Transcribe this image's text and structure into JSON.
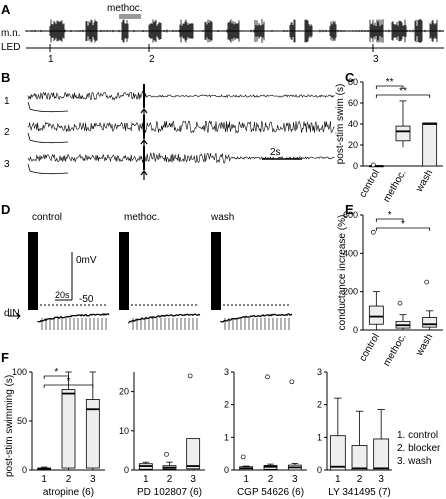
{
  "panels": {
    "A": {
      "letter": "A",
      "mn_label": "m.n.",
      "led_label": "LED",
      "drug_label": "methoc.",
      "markers": [
        "1",
        "2",
        "3"
      ]
    },
    "B": {
      "letter": "B",
      "trace_labels": [
        "1",
        "2",
        "3"
      ],
      "scalebar_label": "2s"
    },
    "C": {
      "letter": "C",
      "ylabel": "post-stim swim (s)",
      "yticks": [
        "0",
        "20",
        "40",
        "60",
        "80"
      ],
      "categories": [
        "control",
        "methoc.",
        "wash"
      ],
      "sig": [
        "**",
        "**"
      ]
    },
    "D": {
      "letter": "D",
      "cond_labels": [
        "control",
        "methoc.",
        "wash"
      ],
      "mv_label": "0mV",
      "scale_ms": "20s",
      "scale_mv": "-50",
      "din_label": "dIN"
    },
    "E": {
      "letter": "E",
      "ylabel": "conductance increase (%)",
      "yticks": [
        "0",
        "200",
        "400",
        "600"
      ],
      "categories": [
        "control",
        "methoc.",
        "wash"
      ],
      "sig": [
        "*",
        "*"
      ]
    },
    "F": {
      "letter": "F",
      "ylabel": "post-stim swimming (s)",
      "legend": [
        "1. control",
        "2. blocker",
        "3. wash"
      ],
      "subplots": [
        {
          "xlabel": "atropine (6)",
          "yticks": [
            "0",
            "50",
            "100"
          ],
          "xticks": [
            "1",
            "2",
            "3"
          ],
          "sig": [
            "*",
            "*"
          ]
        },
        {
          "xlabel": "PD 102807 (6)",
          "yticks": [
            "0",
            "10",
            "20"
          ],
          "xticks": [
            "1",
            "2",
            "3"
          ]
        },
        {
          "xlabel": "CGP 54626 (6)",
          "yticks": [
            "0",
            "1",
            "2",
            "3"
          ],
          "xticks": [
            "1",
            "2",
            "3"
          ]
        },
        {
          "xlabel": "LY 341495 (7)",
          "yticks": [
            "0",
            "1",
            "2",
            "3"
          ],
          "xticks": [
            "1",
            "2",
            "3"
          ]
        }
      ]
    }
  },
  "chart_data": [
    {
      "type": "box",
      "panel": "C",
      "categories": [
        "control",
        "methoc.",
        "wash"
      ],
      "ylim": [
        0,
        80
      ],
      "boxes": [
        {
          "min": 0,
          "q1": 0,
          "median": 0,
          "q3": 0,
          "max": 0
        },
        {
          "min": 18,
          "q1": 24,
          "median": 33,
          "q3": 38,
          "max": 62
        },
        {
          "min": 0,
          "q1": 0,
          "median": 40,
          "q3": 41,
          "max": 41
        }
      ],
      "outliers": [
        [
          0,
          1
        ]
      ]
    },
    {
      "type": "box",
      "panel": "E",
      "categories": [
        "control",
        "methoc.",
        "wash"
      ],
      "ylim": [
        0,
        600
      ],
      "boxes": [
        {
          "min": 0,
          "q1": 30,
          "median": 70,
          "q3": 125,
          "max": 200
        },
        {
          "min": 0,
          "q1": 10,
          "median": 25,
          "q3": 45,
          "max": 80
        },
        {
          "min": 0,
          "q1": 15,
          "median": 30,
          "q3": 65,
          "max": 100
        }
      ],
      "outliers": [
        [
          0,
          510
        ],
        [
          1,
          140
        ],
        [
          2,
          250
        ]
      ]
    },
    {
      "type": "box",
      "panel": "F-atropine",
      "categories": [
        "1",
        "2",
        "3"
      ],
      "ylim": [
        0,
        100
      ],
      "boxes": [
        {
          "min": 0,
          "q1": 0,
          "median": 1,
          "q3": 2,
          "max": 3
        },
        {
          "min": 0,
          "q1": 2,
          "median": 78,
          "q3": 82,
          "max": 100
        },
        {
          "min": 0,
          "q1": 2,
          "median": 62,
          "q3": 72,
          "max": 100
        }
      ],
      "outliers": []
    },
    {
      "type": "box",
      "panel": "F-PD102807",
      "categories": [
        "1",
        "2",
        "3"
      ],
      "ylim": [
        0,
        25
      ],
      "boxes": [
        {
          "min": 0,
          "q1": 0.2,
          "median": 1,
          "q3": 1.6,
          "max": 2
        },
        {
          "min": 0,
          "q1": 0.2,
          "median": 0.6,
          "q3": 1.1,
          "max": 2
        },
        {
          "min": 0,
          "q1": 0.3,
          "median": 1,
          "q3": 8,
          "max": 8
        }
      ],
      "outliers": [
        [
          1,
          4
        ],
        [
          2,
          24
        ]
      ]
    },
    {
      "type": "box",
      "panel": "F-CGP54626",
      "categories": [
        "1",
        "2",
        "3"
      ],
      "ylim": [
        0,
        3
      ],
      "boxes": [
        {
          "min": 0,
          "q1": 0,
          "median": 0.05,
          "q3": 0.1,
          "max": 0.12
        },
        {
          "min": 0,
          "q1": 0.02,
          "median": 0.1,
          "q3": 0.14,
          "max": 0.18
        },
        {
          "min": 0,
          "q1": 0,
          "median": 0.08,
          "q3": 0.15,
          "max": 0.2
        }
      ],
      "outliers": [
        [
          0,
          0.4
        ],
        [
          1,
          2.85
        ],
        [
          2,
          2.7
        ]
      ]
    },
    {
      "type": "box",
      "panel": "F-LY341495",
      "categories": [
        "1",
        "2",
        "3"
      ],
      "ylim": [
        0,
        3
      ],
      "boxes": [
        {
          "min": 0,
          "q1": 0,
          "median": 0.1,
          "q3": 1.05,
          "max": 2.2
        },
        {
          "min": 0,
          "q1": 0,
          "median": 0.05,
          "q3": 0.75,
          "max": 1.8
        },
        {
          "min": 0,
          "q1": 0,
          "median": 0.05,
          "q3": 0.95,
          "max": 1.85
        }
      ],
      "outliers": []
    }
  ]
}
